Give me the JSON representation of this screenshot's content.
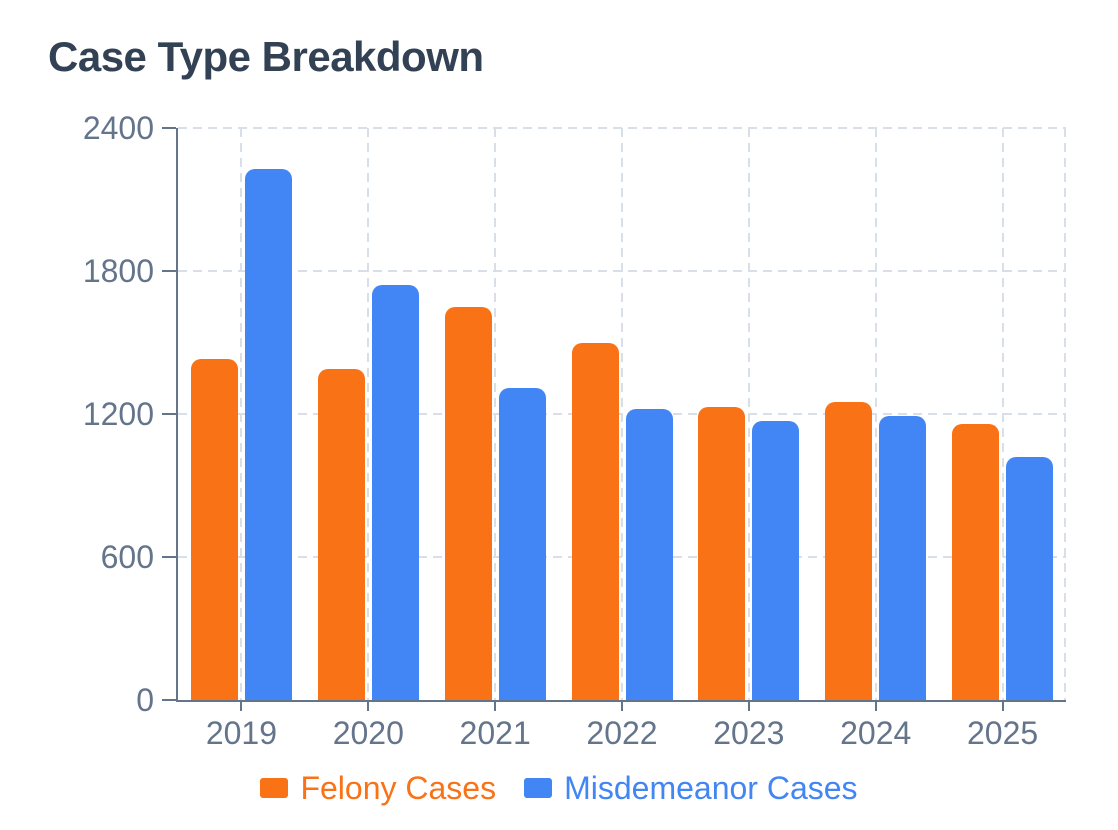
{
  "title": "Case Type Breakdown",
  "colors": {
    "background": "#FFFFFF",
    "title_text": "#334155",
    "axis_text": "#64748B",
    "axis_line": "#64748B",
    "gridline": "#D8DFE9",
    "felony": "#F97316",
    "misdemeanor": "#4285F4"
  },
  "chart_data": {
    "type": "bar",
    "title": "Case Type Breakdown",
    "categories": [
      "2019",
      "2020",
      "2021",
      "2022",
      "2023",
      "2024",
      "2025"
    ],
    "series": [
      {
        "name": "Felony Cases",
        "color": "#F97316",
        "values": [
          1430,
          1390,
          1650,
          1500,
          1230,
          1250,
          1160
        ]
      },
      {
        "name": "Misdemeanor Cases",
        "color": "#4285F4",
        "values": [
          2230,
          1740,
          1310,
          1220,
          1170,
          1190,
          1020
        ]
      }
    ],
    "ylim": [
      0,
      2400
    ],
    "yticks": [
      0,
      600,
      1200,
      1800,
      2400
    ],
    "grid": "dashed",
    "legend_position": "bottom"
  }
}
